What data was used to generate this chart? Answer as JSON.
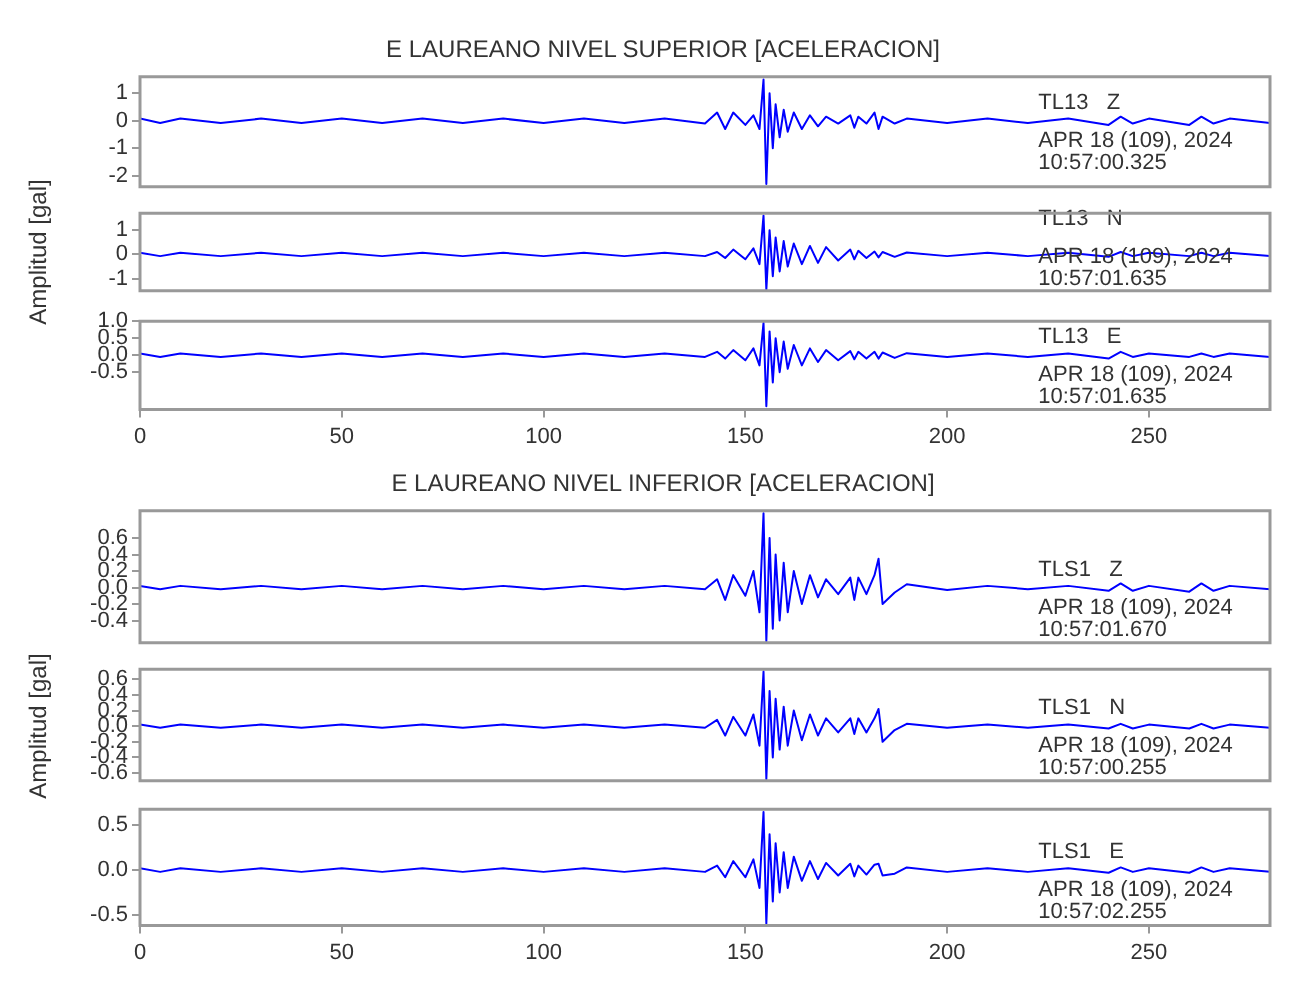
{
  "chart_data": [
    {
      "type": "line",
      "title": "E LAUREANO NIVEL SUPERIOR [ACELERACION]",
      "color": "#0000ff",
      "tick_labels": "y",
      "xlim": [
        0,
        280
      ],
      "xticks": [
        0,
        50,
        100,
        150,
        200,
        250
      ],
      "ylim": [
        -2.4,
        1.6
      ],
      "yticks": [
        -2,
        -1,
        0,
        1
      ],
      "annotations": [
        "TL13   Z",
        "APR 18 (109), 2024",
        "10:57:00.325"
      ],
      "x": [
        0,
        5,
        10,
        20,
        30,
        40,
        50,
        60,
        70,
        80,
        90,
        100,
        110,
        120,
        130,
        140,
        143,
        145,
        147,
        150,
        152,
        153.5,
        154.5,
        155.2,
        156,
        156.8,
        157.5,
        158.5,
        159.5,
        160.5,
        162,
        164,
        166,
        168,
        170,
        173,
        176,
        177,
        178,
        180,
        182,
        183,
        184,
        187,
        190,
        200,
        210,
        220,
        230,
        240,
        243,
        246,
        250,
        260,
        263,
        266,
        270,
        280
      ],
      "values": [
        0.08,
        -0.08,
        0.08,
        -0.08,
        0.08,
        -0.08,
        0.08,
        -0.08,
        0.08,
        -0.08,
        0.08,
        -0.08,
        0.08,
        -0.08,
        0.08,
        -0.1,
        0.3,
        -0.3,
        0.3,
        -0.15,
        0.2,
        -0.3,
        1.5,
        -2.3,
        1.0,
        -1.0,
        0.6,
        -0.6,
        0.4,
        -0.4,
        0.3,
        -0.3,
        0.2,
        -0.2,
        0.15,
        -0.1,
        0.2,
        -0.25,
        0.15,
        -0.1,
        0.3,
        -0.3,
        0.15,
        -0.1,
        0.08,
        -0.08,
        0.08,
        -0.08,
        0.08,
        -0.15,
        0.15,
        -0.1,
        0.08,
        -0.15,
        0.15,
        -0.1,
        0.08,
        -0.08
      ]
    },
    {
      "type": "line",
      "ylabel": "Amplitud [gal]",
      "color": "#0000ff",
      "tick_labels": "y",
      "xlim": [
        0,
        280
      ],
      "xticks": [
        0,
        50,
        100,
        150,
        200,
        250
      ],
      "ylim": [
        -1.5,
        1.7
      ],
      "yticks": [
        -1,
        0,
        1
      ],
      "annotations": [
        "TL13   N",
        "APR 18 (109), 2024",
        "10:57:01.635"
      ],
      "x": [
        0,
        5,
        10,
        20,
        30,
        40,
        50,
        60,
        70,
        80,
        90,
        100,
        110,
        120,
        130,
        140,
        143,
        145,
        147,
        150,
        152,
        153.5,
        154.5,
        155.2,
        156,
        156.8,
        157.5,
        158.5,
        159.5,
        160.5,
        162,
        164,
        166,
        168,
        170,
        173,
        176,
        177,
        178,
        180,
        182,
        183,
        184,
        187,
        190,
        200,
        210,
        220,
        230,
        240,
        243,
        246,
        250,
        260,
        263,
        266,
        270,
        280
      ],
      "values": [
        0.07,
        -0.07,
        0.07,
        -0.07,
        0.07,
        -0.07,
        0.07,
        -0.07,
        0.07,
        -0.07,
        0.07,
        -0.07,
        0.07,
        -0.07,
        0.07,
        -0.07,
        0.1,
        -0.15,
        0.2,
        -0.2,
        0.25,
        -0.4,
        1.6,
        -1.45,
        1.0,
        -0.9,
        0.7,
        -0.7,
        0.55,
        -0.5,
        0.45,
        -0.4,
        0.35,
        -0.35,
        0.3,
        -0.25,
        0.2,
        -0.2,
        0.15,
        -0.15,
        0.12,
        -0.12,
        0.1,
        -0.1,
        0.08,
        -0.07,
        0.07,
        -0.07,
        0.07,
        -0.1,
        0.1,
        -0.07,
        0.07,
        -0.07,
        0.07,
        -0.07,
        0.07,
        -0.07
      ]
    },
    {
      "type": "line",
      "color": "#0000ff",
      "xlim": [
        0,
        280
      ],
      "xticks": [
        0,
        50,
        100,
        150,
        200,
        250
      ],
      "ylim": [
        -1.6,
        1.0
      ],
      "yticks": [
        {
          "value": -0.5,
          "label": "-0.5"
        },
        {
          "value": 0,
          "label": "0.0"
        },
        0.5,
        {
          "value": 1,
          "label": "1.0"
        }
      ],
      "annotations": [
        "TL13   E",
        "APR 18 (109), 2024",
        "10:57:01.635"
      ],
      "x": [
        0,
        5,
        10,
        20,
        30,
        40,
        50,
        60,
        70,
        80,
        90,
        100,
        110,
        120,
        130,
        140,
        143,
        145,
        147,
        150,
        152,
        153.5,
        154.5,
        155.2,
        156,
        156.8,
        157.5,
        158.5,
        159.5,
        160.5,
        162,
        164,
        166,
        168,
        170,
        173,
        176,
        177,
        178,
        180,
        182,
        183,
        184,
        187,
        190,
        200,
        210,
        220,
        230,
        240,
        243,
        246,
        250,
        260,
        263,
        266,
        270,
        280
      ],
      "values": [
        0.05,
        -0.05,
        0.05,
        -0.05,
        0.05,
        -0.05,
        0.05,
        -0.05,
        0.05,
        -0.05,
        0.05,
        -0.05,
        0.05,
        -0.05,
        0.05,
        -0.05,
        0.1,
        -0.1,
        0.15,
        -0.15,
        0.2,
        -0.3,
        0.95,
        -1.5,
        0.7,
        -0.8,
        0.5,
        -0.5,
        0.4,
        -0.4,
        0.3,
        -0.3,
        0.2,
        -0.2,
        0.15,
        -0.15,
        0.12,
        -0.12,
        0.1,
        -0.1,
        0.1,
        -0.1,
        0.08,
        -0.08,
        0.06,
        -0.05,
        0.05,
        -0.05,
        0.05,
        -0.1,
        0.1,
        -0.05,
        0.05,
        -0.05,
        0.05,
        -0.05,
        0.05,
        -0.05
      ]
    },
    {
      "type": "line",
      "title": "E LAUREANO NIVEL INFERIOR [ACELERACION]",
      "color": "#0000ff",
      "tick_labels": "y",
      "xlim": [
        0,
        280
      ],
      "xticks": [
        0,
        50,
        100,
        150,
        200,
        250
      ],
      "ylim": [
        -0.67,
        0.93
      ],
      "yticks": [
        -0.4,
        -0.2,
        {
          "value": 0,
          "label": "0.0"
        },
        0.2,
        0.4,
        0.6
      ],
      "annotations": [
        "TLS1   Z",
        "APR 18 (109), 2024",
        "10:57:01.670"
      ],
      "x": [
        0,
        5,
        10,
        20,
        30,
        40,
        50,
        60,
        70,
        80,
        90,
        100,
        110,
        120,
        130,
        140,
        143,
        145,
        147,
        150,
        152,
        153.5,
        154.5,
        155.2,
        156,
        156.8,
        157.5,
        158.5,
        159.5,
        160.5,
        162,
        164,
        166,
        168,
        170,
        173,
        176,
        177,
        178,
        180,
        182,
        183,
        184,
        187,
        190,
        200,
        210,
        220,
        230,
        240,
        243,
        246,
        250,
        260,
        263,
        266,
        270,
        280
      ],
      "values": [
        0.02,
        -0.02,
        0.02,
        -0.02,
        0.02,
        -0.02,
        0.02,
        -0.02,
        0.02,
        -0.02,
        0.02,
        -0.02,
        0.02,
        -0.02,
        0.02,
        -0.02,
        0.1,
        -0.15,
        0.15,
        -0.1,
        0.2,
        -0.3,
        0.9,
        -0.65,
        0.6,
        -0.5,
        0.4,
        -0.4,
        0.3,
        -0.3,
        0.2,
        -0.2,
        0.15,
        -0.12,
        0.1,
        -0.08,
        0.12,
        -0.15,
        0.12,
        -0.08,
        0.15,
        0.35,
        -0.2,
        -0.06,
        0.04,
        -0.03,
        0.02,
        -0.02,
        0.02,
        -0.04,
        0.05,
        -0.04,
        0.02,
        -0.05,
        0.05,
        -0.04,
        0.02,
        -0.02
      ]
    },
    {
      "type": "line",
      "ylabel": "Amplitud [gal]",
      "color": "#0000ff",
      "tick_labels": "y",
      "xlim": [
        0,
        280
      ],
      "xticks": [
        0,
        50,
        100,
        150,
        200,
        250
      ],
      "ylim": [
        -0.7,
        0.73
      ],
      "yticks": [
        -0.6,
        -0.4,
        -0.2,
        {
          "value": 0,
          "label": "0.0"
        },
        0.2,
        0.4,
        0.6
      ],
      "annotations": [
        "TLS1   N",
        "APR 18 (109), 2024",
        "10:57:00.255"
      ],
      "x": [
        0,
        5,
        10,
        20,
        30,
        40,
        50,
        60,
        70,
        80,
        90,
        100,
        110,
        120,
        130,
        140,
        143,
        145,
        147,
        150,
        152,
        153.5,
        154.5,
        155.2,
        156,
        156.8,
        157.5,
        158.5,
        159.5,
        160.5,
        162,
        164,
        166,
        168,
        170,
        173,
        176,
        177,
        178,
        180,
        182,
        183,
        184,
        187,
        190,
        200,
        210,
        220,
        230,
        240,
        243,
        246,
        250,
        260,
        263,
        266,
        270,
        280
      ],
      "values": [
        0.02,
        -0.02,
        0.02,
        -0.02,
        0.02,
        -0.02,
        0.02,
        -0.02,
        0.02,
        -0.02,
        0.02,
        -0.02,
        0.02,
        -0.02,
        0.02,
        -0.02,
        0.08,
        -0.12,
        0.12,
        -0.12,
        0.15,
        -0.25,
        0.7,
        -0.68,
        0.45,
        -0.4,
        0.35,
        -0.3,
        0.25,
        -0.25,
        0.2,
        -0.18,
        0.15,
        -0.12,
        0.1,
        -0.08,
        0.1,
        -0.1,
        0.1,
        -0.08,
        0.1,
        0.22,
        -0.2,
        -0.05,
        0.03,
        -0.02,
        0.02,
        -0.02,
        0.02,
        -0.03,
        0.03,
        -0.03,
        0.02,
        -0.03,
        0.03,
        -0.03,
        0.02,
        -0.02
      ]
    },
    {
      "type": "line",
      "color": "#0000ff",
      "xlim": [
        0,
        280
      ],
      "xticks": [
        0,
        50,
        100,
        150,
        200,
        250
      ],
      "ylim": [
        -0.62,
        0.68
      ],
      "yticks": [
        {
          "value": -0.5,
          "label": "-0.5"
        },
        {
          "value": 0,
          "label": "0.0"
        },
        0.5
      ],
      "annotations": [
        "TLS1   E",
        "APR 18 (109), 2024",
        "10:57:02.255"
      ],
      "x": [
        0,
        5,
        10,
        20,
        30,
        40,
        50,
        60,
        70,
        80,
        90,
        100,
        110,
        120,
        130,
        140,
        143,
        145,
        147,
        150,
        152,
        153.5,
        154.5,
        155.2,
        156,
        156.8,
        157.5,
        158.5,
        159.5,
        160.5,
        162,
        164,
        166,
        168,
        170,
        173,
        176,
        177,
        178,
        180,
        182,
        183,
        184,
        187,
        190,
        200,
        210,
        220,
        230,
        240,
        243,
        246,
        250,
        260,
        263,
        266,
        270,
        280
      ],
      "values": [
        0.02,
        -0.02,
        0.02,
        -0.02,
        0.02,
        -0.02,
        0.02,
        -0.02,
        0.02,
        -0.02,
        0.02,
        -0.02,
        0.02,
        -0.02,
        0.02,
        -0.02,
        0.05,
        -0.08,
        0.1,
        -0.08,
        0.12,
        -0.2,
        0.65,
        -0.6,
        0.4,
        -0.35,
        0.3,
        -0.25,
        0.2,
        -0.2,
        0.15,
        -0.12,
        0.1,
        -0.1,
        0.08,
        -0.06,
        0.07,
        -0.07,
        0.05,
        -0.05,
        0.06,
        0.07,
        -0.06,
        -0.04,
        0.03,
        -0.02,
        0.02,
        -0.02,
        0.02,
        -0.03,
        0.03,
        -0.02,
        0.02,
        -0.03,
        0.03,
        -0.02,
        0.02,
        -0.02
      ]
    }
  ]
}
